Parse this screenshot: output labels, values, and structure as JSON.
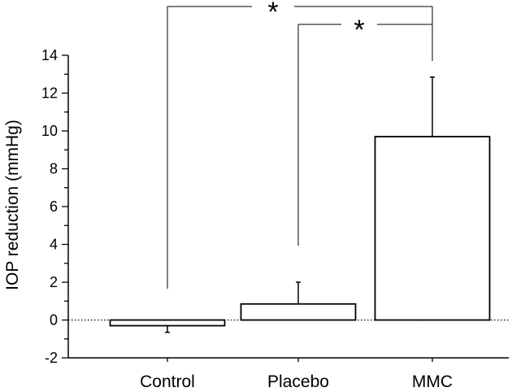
{
  "chart_data": {
    "type": "bar",
    "title": "",
    "xlabel": "",
    "ylabel": "IOP reduction (mmHg)",
    "ylim": [
      -2,
      14
    ],
    "yticks": [
      -2,
      0,
      2,
      4,
      6,
      8,
      10,
      12,
      14
    ],
    "yticks_labels": [
      "-2",
      "0",
      "2",
      "4",
      "6",
      "8",
      "10",
      "12",
      "14"
    ],
    "categories": [
      "Control",
      "Placebo",
      "MMC"
    ],
    "values": [
      -0.3,
      0.85,
      9.7
    ],
    "error": [
      0.35,
      1.15,
      3.15
    ],
    "reference_line": {
      "y": 0,
      "style": "dotted"
    },
    "significance": [
      {
        "from": "Control",
        "to": "MMC",
        "label": "*"
      },
      {
        "from": "Placebo",
        "to": "MMC",
        "label": "*"
      }
    ],
    "bar_fill": "#ffffff",
    "bar_stroke": "#000000"
  }
}
